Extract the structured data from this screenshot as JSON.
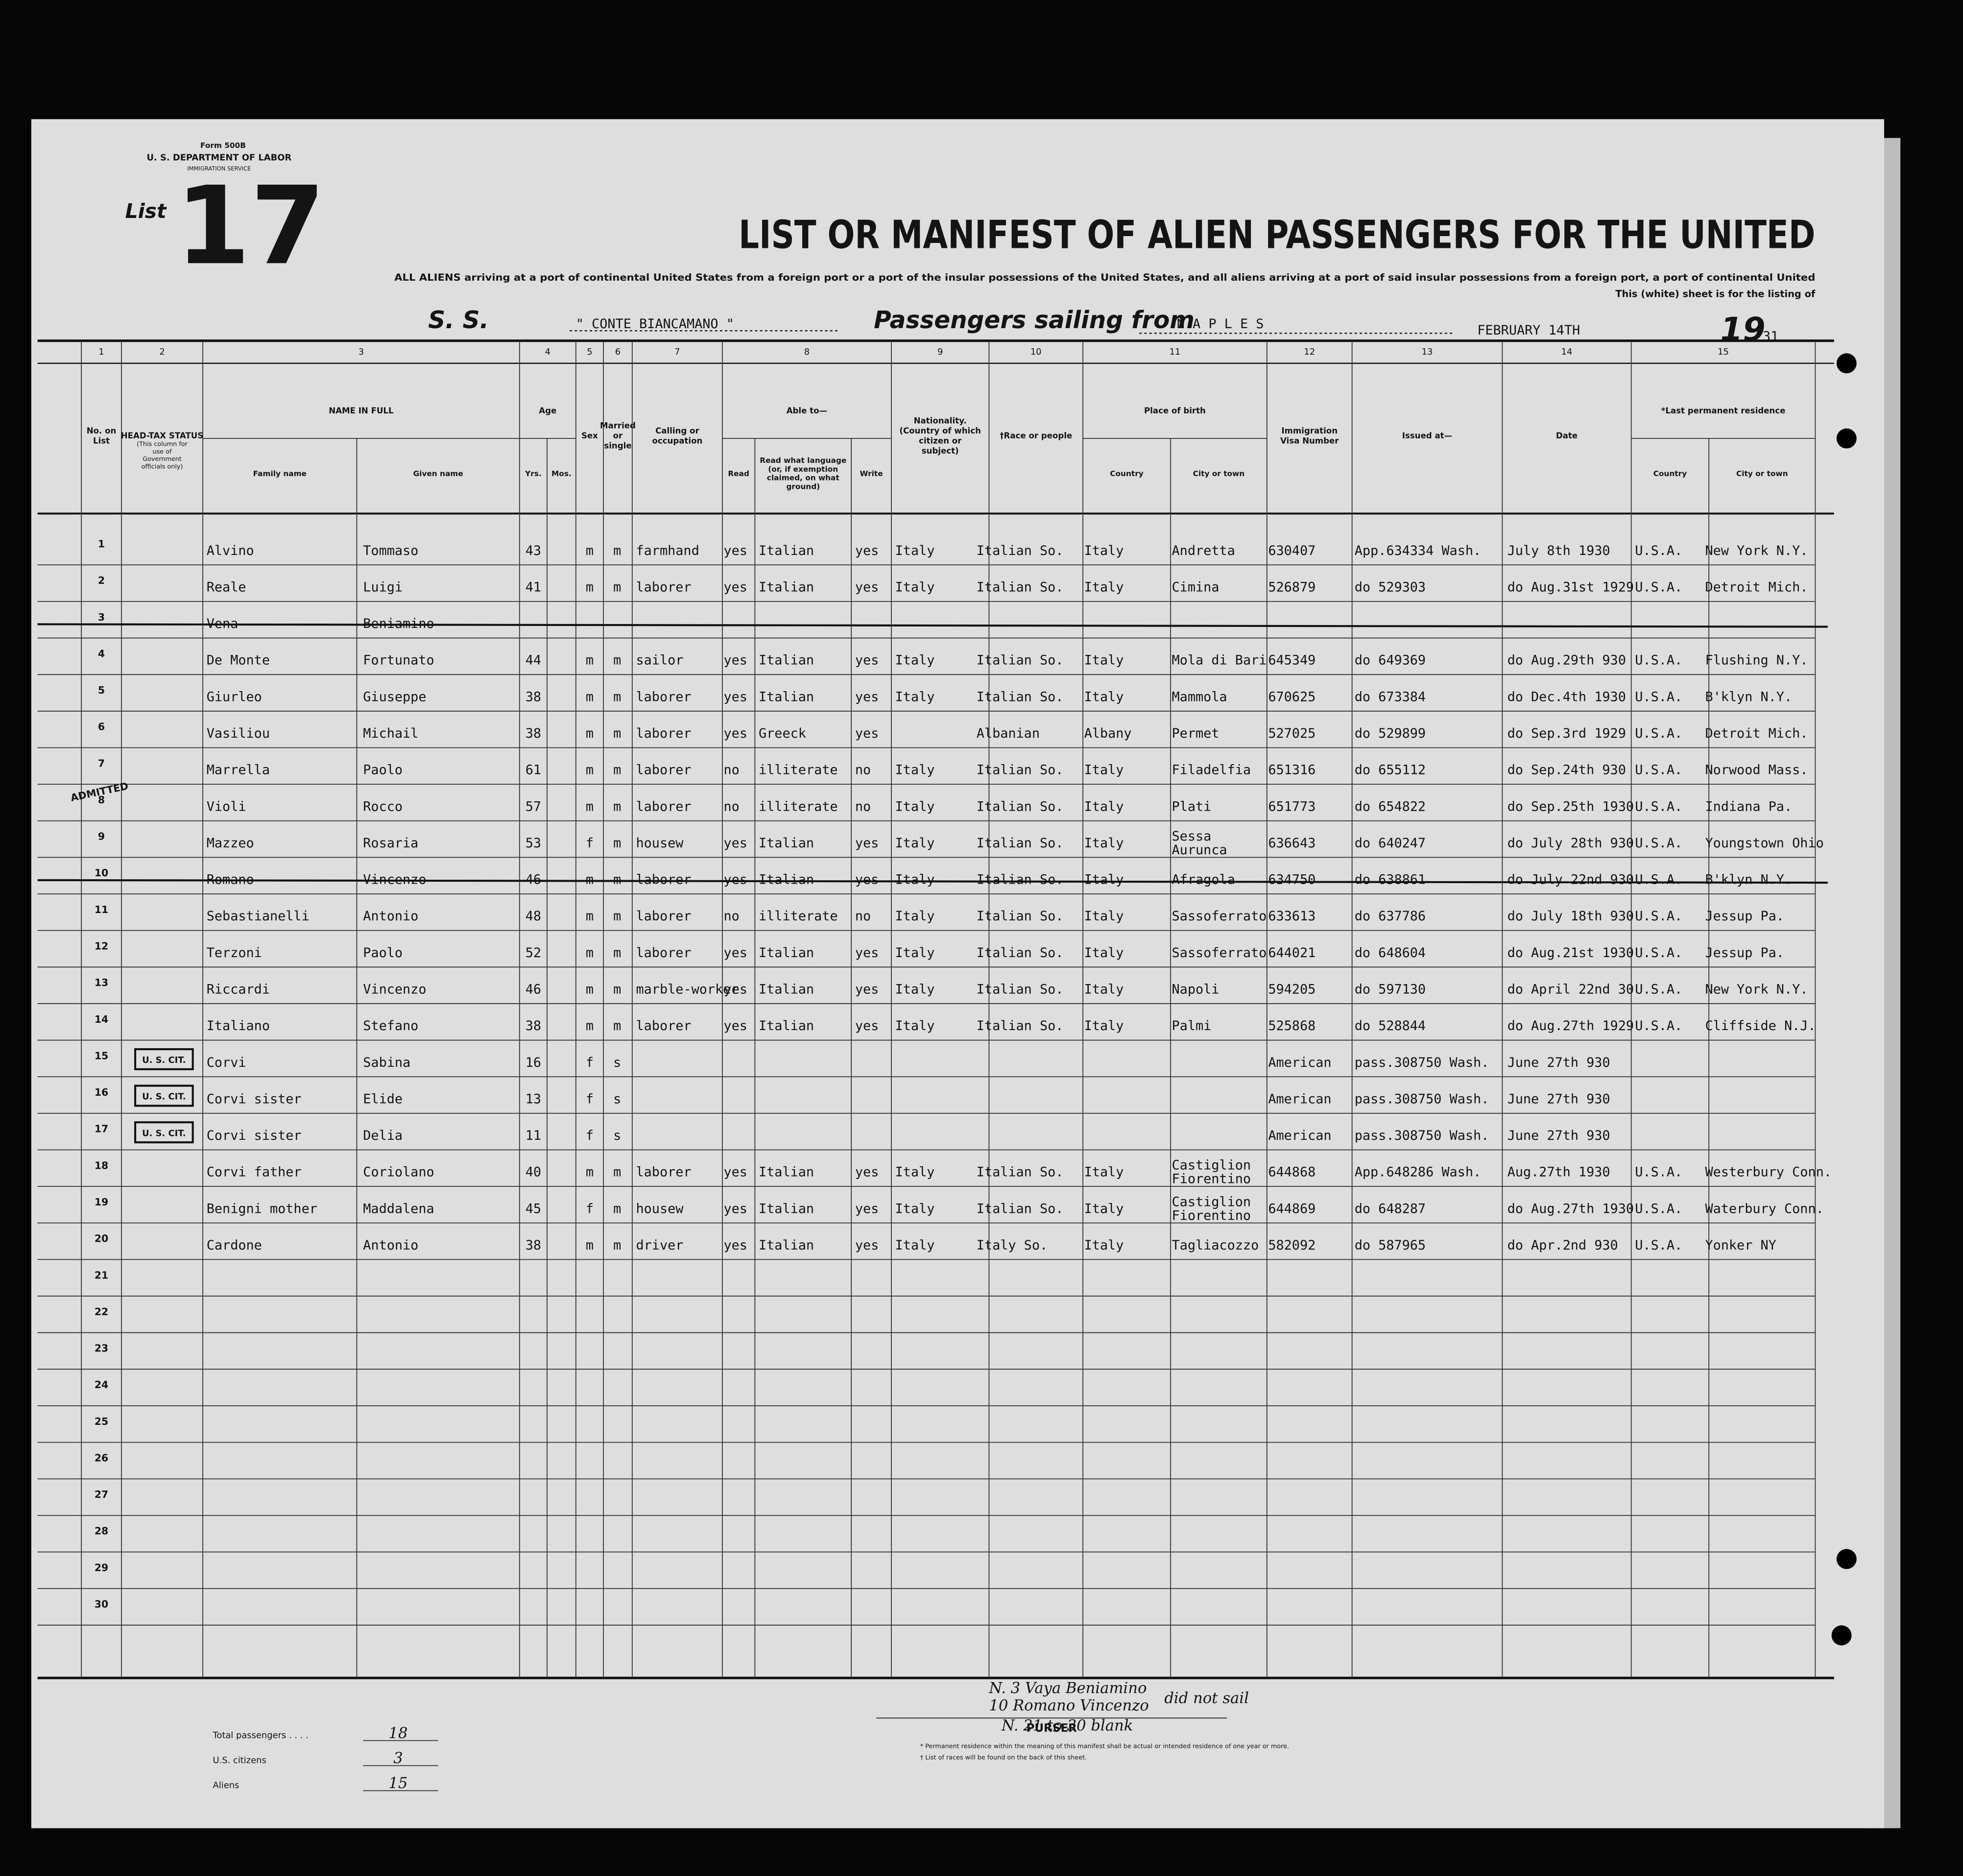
{
  "header": {
    "form": "Form 500B",
    "department": "U. S. DEPARTMENT OF LABOR",
    "service": "IMMIGRATION SERVICE",
    "list_label": "List",
    "list_number": "17",
    "title": "LIST OR MANIFEST OF ALIEN PASSENGERS FOR THE UNITED",
    "subtitle": "ALL ALIENS arriving at a port of continental United States from a foreign port or a port of the insular possessions of the United States, and all aliens arriving at a port of said insular possessions from a foreign port, a port of continental United",
    "subtitle2": "This (white) sheet is for the listing of",
    "ss_label": "S. S.",
    "ship": "\" CONTE BIANCAMANO \"",
    "sailing_label": "Passengers sailing from",
    "port": "N A P L E S",
    "date": "FEBRUARY 14TH",
    "year_prefix": "19",
    "year_suffix": "31"
  },
  "columns": [
    {
      "number": "1",
      "label": "No. on List"
    },
    {
      "number": "2",
      "label": "HEAD-TAX STATUS",
      "note": "(This column for use of Government officials only)"
    },
    {
      "number": "3",
      "label": "NAME IN FULL",
      "sub": [
        "Family name",
        "Given name"
      ]
    },
    {
      "number": "4",
      "label": "Age",
      "sub": [
        "Yrs.",
        "Mos."
      ]
    },
    {
      "number": "5",
      "label": "Sex"
    },
    {
      "number": "6",
      "label": "Married or single"
    },
    {
      "number": "7",
      "label": "Calling or occupation"
    },
    {
      "number": "8",
      "label": "Able to—",
      "sub": [
        "Read",
        "Read what language (or, if exemption claimed, on what ground)",
        "Write"
      ]
    },
    {
      "number": "9",
      "label": "Nationality. (Country of which citizen or subject)"
    },
    {
      "number": "10",
      "label": "†Race or people"
    },
    {
      "number": "11",
      "label": "Place of birth",
      "sub": [
        "Country",
        "City or town"
      ]
    },
    {
      "number": "12",
      "label": "Immigration Visa Number"
    },
    {
      "number": "13",
      "label": "Issued at—"
    },
    {
      "number": "14",
      "label": "Date"
    },
    {
      "number": "15",
      "label": "*Last permanent residence",
      "sub": [
        "Country",
        "City or town"
      ]
    }
  ],
  "rows": [
    {
      "no": "1",
      "family": "Alvino",
      "given": "Tommaso",
      "age": "43",
      "sex": "m",
      "marital": "m",
      "occupation": "farmhand",
      "read": "yes",
      "language": "Italian",
      "write": "yes",
      "nationality": "Italy",
      "race": "Italian So.",
      "birth_country": "Italy",
      "birth_city": "Andretta",
      "visa": "630407",
      "issued_at": "App.634334 Wash.",
      "date": "July 8th 1930",
      "res_country": "U.S.A.",
      "res_city": "New York N.Y."
    },
    {
      "no": "2",
      "family": "Reale",
      "given": "Luigi",
      "age": "41",
      "sex": "m",
      "marital": "m",
      "occupation": "laborer",
      "read": "yes",
      "language": "Italian",
      "write": "yes",
      "nationality": "Italy",
      "race": "Italian So.",
      "birth_country": "Italy",
      "birth_city": "Cimina",
      "visa": "526879",
      "issued_at": "do 529303",
      "date": "do Aug.31st 1929",
      "res_country": "U.S.A.",
      "res_city": "Detroit Mich."
    },
    {
      "no": "3",
      "family": "Vena",
      "given": "Beniamino",
      "struck": true
    },
    {
      "no": "4",
      "family": "De Monte",
      "given": "Fortunato",
      "age": "44",
      "sex": "m",
      "marital": "m",
      "occupation": "sailor",
      "read": "yes",
      "language": "Italian",
      "write": "yes",
      "nationality": "Italy",
      "race": "Italian So.",
      "birth_country": "Italy",
      "birth_city": "Mola di Bari",
      "visa": "645349",
      "issued_at": "do 649369",
      "date": "do Aug.29th 930",
      "res_country": "U.S.A.",
      "res_city": "Flushing N.Y."
    },
    {
      "no": "5",
      "family": "Giurleo",
      "given": "Giuseppe",
      "age": "38",
      "sex": "m",
      "marital": "m",
      "occupation": "laborer",
      "read": "yes",
      "language": "Italian",
      "write": "yes",
      "nationality": "Italy",
      "race": "Italian So.",
      "birth_country": "Italy",
      "birth_city": "Mammola",
      "visa": "670625",
      "issued_at": "do 673384",
      "date": "do Dec.4th 1930",
      "res_country": "U.S.A.",
      "res_city": "B'klyn N.Y."
    },
    {
      "no": "6",
      "family": "Vasiliou",
      "given": "Michail",
      "age": "38",
      "sex": "m",
      "marital": "m",
      "occupation": "laborer",
      "read": "yes",
      "language": "Greeck",
      "write": "yes",
      "race": "Albanian",
      "birth_country": "Albany",
      "birth_city": "Permet",
      "visa": "527025",
      "issued_at": "do 529899",
      "date": "do Sep.3rd 1929",
      "res_country": "U.S.A.",
      "res_city": "Detroit Mich."
    },
    {
      "no": "7",
      "family": "Marrella",
      "given": "Paolo",
      "age": "61",
      "sex": "m",
      "marital": "m",
      "occupation": "laborer",
      "read": "no",
      "language": "illiterate",
      "write": "no",
      "nationality": "Italy",
      "race": "Italian So.",
      "birth_country": "Italy",
      "birth_city": "Filadelfia",
      "visa": "651316",
      "issued_at": "do 655112",
      "date": "do Sep.24th 930",
      "res_country": "U.S.A.",
      "res_city": "Norwood Mass."
    },
    {
      "no": "8",
      "family": "Violi",
      "given": "Rocco",
      "age": "57",
      "sex": "m",
      "marital": "m",
      "occupation": "laborer",
      "read": "no",
      "language": "illiterate",
      "write": "no",
      "nationality": "Italy",
      "race": "Italian So.",
      "birth_country": "Italy",
      "birth_city": "Plati",
      "visa": "651773",
      "issued_at": "do 654822",
      "date": "do Sep.25th 1930",
      "res_country": "U.S.A.",
      "res_city": "Indiana Pa."
    },
    {
      "no": "9",
      "family": "Mazzeo",
      "given": "Rosaria",
      "age": "53",
      "sex": "f",
      "marital": "m",
      "occupation": "housew",
      "read": "yes",
      "language": "Italian",
      "write": "yes",
      "nationality": "Italy",
      "race": "Italian So.",
      "birth_country": "Italy",
      "birth_city": "Sessa Aurunca",
      "visa": "636643",
      "issued_at": "do 640247",
      "date": "do July 28th 930",
      "res_country": "U.S.A.",
      "res_city": "Youngstown Ohio"
    },
    {
      "no": "10",
      "family": "Romano",
      "given": "Vincenzo",
      "age": "46",
      "sex": "m",
      "marital": "m",
      "occupation": "laborer",
      "read": "yes",
      "language": "Italian",
      "write": "yes",
      "nationality": "Italy",
      "race": "Italian So.",
      "birth_country": "Italy",
      "birth_city": "Afragola",
      "visa": "634750",
      "issued_at": "do 638861",
      "date": "do July 22nd 930",
      "res_country": "U.S.A.",
      "res_city": "B'klyn N.Y.",
      "struck": true
    },
    {
      "no": "11",
      "family": "Sebastianelli",
      "given": "Antonio",
      "age": "48",
      "sex": "m",
      "marital": "m",
      "occupation": "laborer",
      "read": "no",
      "language": "illiterate",
      "write": "no",
      "nationality": "Italy",
      "race": "Italian So.",
      "birth_country": "Italy",
      "birth_city": "Sassoferrato",
      "visa": "633613",
      "issued_at": "do 637786",
      "date": "do July 18th 930",
      "res_country": "U.S.A.",
      "res_city": "Jessup Pa."
    },
    {
      "no": "12",
      "family": "Terzoni",
      "given": "Paolo",
      "age": "52",
      "sex": "m",
      "marital": "m",
      "occupation": "laborer",
      "read": "yes",
      "language": "Italian",
      "write": "yes",
      "nationality": "Italy",
      "race": "Italian So.",
      "birth_country": "Italy",
      "birth_city": "Sassoferrato",
      "visa": "644021",
      "issued_at": "do 648604",
      "date": "do Aug.21st 1930",
      "res_country": "U.S.A.",
      "res_city": "Jessup Pa."
    },
    {
      "no": "13",
      "family": "Riccardi",
      "given": "Vincenzo",
      "age": "46",
      "sex": "m",
      "marital": "m",
      "occupation": "marble-worker",
      "read": "yes",
      "language": "Italian",
      "write": "yes",
      "nationality": "Italy",
      "race": "Italian So.",
      "birth_country": "Italy",
      "birth_city": "Napoli",
      "visa": "594205",
      "issued_at": "do 597130",
      "date": "do April 22nd 30",
      "res_country": "U.S.A.",
      "res_city": "New York N.Y."
    },
    {
      "no": "14",
      "family": "Italiano",
      "given": "Stefano",
      "age": "38",
      "sex": "m",
      "marital": "m",
      "occupation": "laborer",
      "read": "yes",
      "language": "Italian",
      "write": "yes",
      "nationality": "Italy",
      "race": "Italian So.",
      "birth_country": "Italy",
      "birth_city": "Palmi",
      "visa": "525868",
      "issued_at": "do 528844",
      "date": "do Aug.27th 1929",
      "res_country": "U.S.A.",
      "res_city": "Cliffside N.J."
    },
    {
      "no": "15",
      "headtax": "U. S. CIT.",
      "family": "Corvi",
      "given": "Sabina",
      "age": "16",
      "sex": "f",
      "marital": "s",
      "visa": "American",
      "issued_at": "pass.308750 Wash.",
      "date": "June 27th 930"
    },
    {
      "no": "16",
      "headtax": "U. S. CIT.",
      "family": "Corvi sister",
      "given": "Elide",
      "age": "13",
      "sex": "f",
      "marital": "s",
      "visa": "American",
      "issued_at": "pass.308750 Wash.",
      "date": "June 27th 930"
    },
    {
      "no": "17",
      "headtax": "U. S. CIT.",
      "family": "Corvi sister",
      "given": "Delia",
      "age": "11",
      "sex": "f",
      "marital": "s",
      "visa": "American",
      "issued_at": "pass.308750 Wash.",
      "date": "June 27th 930"
    },
    {
      "no": "18",
      "family": "Corvi father",
      "given": "Coriolano",
      "age": "40",
      "sex": "m",
      "marital": "m",
      "occupation": "laborer",
      "read": "yes",
      "language": "Italian",
      "write": "yes",
      "nationality": "Italy",
      "race": "Italian So.",
      "birth_country": "Italy",
      "birth_city": "Castiglion Fiorentino",
      "visa": "644868",
      "issued_at": "App.648286 Wash.",
      "date": "Aug.27th 1930",
      "res_country": "U.S.A.",
      "res_city": "Westerbury Conn."
    },
    {
      "no": "19",
      "family": "Benigni mother",
      "given": "Maddalena",
      "age": "45",
      "sex": "f",
      "marital": "m",
      "occupation": "housew",
      "read": "yes",
      "language": "Italian",
      "write": "yes",
      "nationality": "Italy",
      "race": "Italian So.",
      "birth_country": "Italy",
      "birth_city": "Castiglion Fiorentino",
      "visa": "644869",
      "issued_at": "do 648287",
      "date": "do Aug.27th 1930",
      "res_country": "U.S.A.",
      "res_city": "Waterbury Conn."
    },
    {
      "no": "20",
      "family": "Cardone",
      "given": "Antonio",
      "age": "38",
      "sex": "m",
      "marital": "m",
      "occupation": "driver",
      "read": "yes",
      "language": "Italian",
      "write": "yes",
      "nationality": "Italy",
      "race": "Italy So.",
      "birth_country": "Italy",
      "birth_city": "Tagliacozzo",
      "visa": "582092",
      "issued_at": "do 587965",
      "date": "do Apr.2nd 930",
      "res_country": "U.S.A.",
      "res_city": "Yonker NY"
    }
  ],
  "blank_row_numbers": [
    "21",
    "22",
    "23",
    "24",
    "25",
    "26",
    "27",
    "28",
    "29",
    "30"
  ],
  "stamp": "ADMITTED",
  "footer": {
    "note_1": "N. 3 Vaya Beniamino",
    "note_2": "10 Romano Vincenzo",
    "note_3": "did not sail",
    "note_4": "N. 21 to 30 blank",
    "totals": [
      {
        "label": "Total passengers . . . .",
        "value": "18"
      },
      {
        "label": "U.S. citizens",
        "value": "3"
      },
      {
        "label": "Aliens",
        "value": "15"
      }
    ],
    "purser": "PURSER",
    "footnote_1": "* Permanent residence within the meaning of this manifest shall be actual or intended residence of one year or more.",
    "footnote_2": "† List of races will be found on the back of this sheet."
  }
}
